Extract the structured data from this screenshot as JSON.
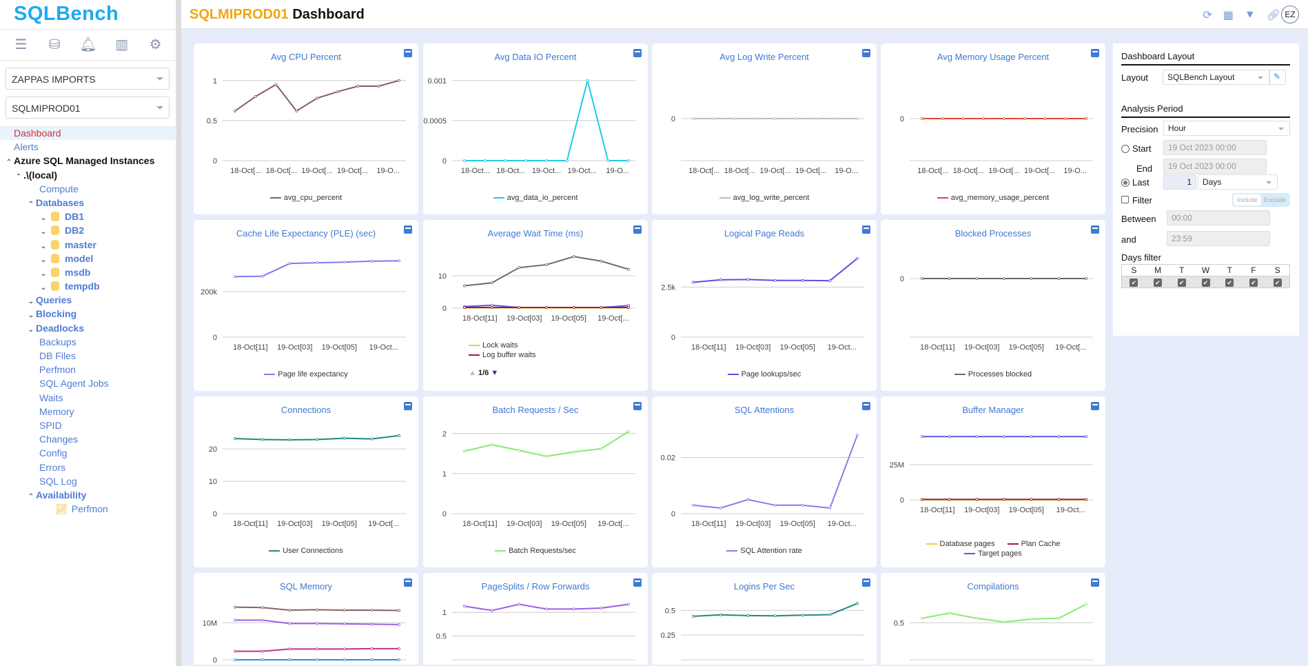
{
  "app": {
    "logo": "SQLBench",
    "server": "SQLMIPROD01",
    "page": "Dashboard",
    "avatar": "EZ"
  },
  "sidebar": {
    "icons": [
      "menu-icon",
      "database-icon",
      "bell-icon",
      "chart-icon",
      "gear-icon"
    ],
    "company": "ZAPPAS IMPORTS",
    "server": "SQLMIPROD01",
    "items": [
      {
        "label": "Dashboard",
        "indent": 0,
        "active": true
      },
      {
        "label": "Alerts",
        "indent": 0
      },
      {
        "label": "Azure SQL Managed Instances",
        "indent": 0,
        "chev": "up",
        "bold": true,
        "dark": true
      },
      {
        "label": ".\\(local)",
        "indent": 1,
        "chev": "up",
        "bold": true,
        "dark": true
      },
      {
        "label": "Compute",
        "indent": 3
      },
      {
        "label": "Databases",
        "indent": 2,
        "chev": "up",
        "bold": true
      },
      {
        "label": "DB1",
        "indent": 3,
        "chev": "down",
        "bold": true,
        "db": true
      },
      {
        "label": "DB2",
        "indent": 3,
        "chev": "down",
        "bold": true,
        "db": true
      },
      {
        "label": "master",
        "indent": 3,
        "chev": "down",
        "bold": true,
        "db": true
      },
      {
        "label": "model",
        "indent": 3,
        "chev": "down",
        "bold": true,
        "db": true
      },
      {
        "label": "msdb",
        "indent": 3,
        "chev": "down",
        "bold": true,
        "db": true
      },
      {
        "label": "tempdb",
        "indent": 3,
        "chev": "down",
        "bold": true,
        "db": true
      },
      {
        "label": "Queries",
        "indent": 2,
        "chev": "down",
        "bold": true
      },
      {
        "label": "Blocking",
        "indent": 2,
        "chev": "down",
        "bold": true
      },
      {
        "label": "Deadlocks",
        "indent": 2,
        "chev": "down",
        "bold": true
      },
      {
        "label": "Backups",
        "indent": 3
      },
      {
        "label": "DB Files",
        "indent": 3
      },
      {
        "label": "Perfmon",
        "indent": 3
      },
      {
        "label": "SQL Agent Jobs",
        "indent": 3
      },
      {
        "label": "Waits",
        "indent": 3
      },
      {
        "label": "Memory",
        "indent": 3
      },
      {
        "label": "SPID",
        "indent": 3
      },
      {
        "label": "Changes",
        "indent": 3
      },
      {
        "label": "Config",
        "indent": 3
      },
      {
        "label": "Errors",
        "indent": 3
      },
      {
        "label": "SQL Log",
        "indent": 3
      },
      {
        "label": "Availability",
        "indent": 2,
        "chev": "up",
        "bold": true
      },
      {
        "label": "Perfmon",
        "indent": 4,
        "chart": true
      }
    ]
  },
  "header_icons": [
    "refresh-icon",
    "table-icon",
    "filter-icon",
    "link-icon"
  ],
  "panel": {
    "layout_title": "Dashboard Layout",
    "layout_label": "Layout",
    "layout_value": "SQLBench Layout",
    "period_title": "Analysis Period",
    "precision_label": "Precision",
    "precision_value": "Hour",
    "start_label": "Start",
    "start_value": "19 Oct 2023 00:00",
    "end_label": "End",
    "end_value": "19 Oct 2023 00:00",
    "last_label": "Last",
    "last_value": "1",
    "last_unit": "Days",
    "period_mode": "last",
    "filter_label": "Filter",
    "filter_checked": false,
    "include": "Include",
    "exclude": "Exclude",
    "between_label": "Between",
    "between_value": "00:00",
    "and_label": "and",
    "and_value": "23:59",
    "days_title": "Days filter",
    "days": [
      "S",
      "M",
      "T",
      "W",
      "T",
      "F",
      "S"
    ],
    "days_checked": [
      true,
      true,
      true,
      true,
      true,
      true,
      true
    ]
  },
  "chart_data": [
    {
      "type": "line",
      "title": "Avg CPU Percent",
      "ylim": [
        0,
        1.05
      ],
      "yticks": [
        0,
        0.5,
        1
      ],
      "ytick_labels": [
        "0",
        "0.5",
        "1"
      ],
      "xlabels": [
        "18-Oct[...",
        "18-Oct[...",
        "19-Oct[...",
        "19-Oct[...",
        "19-O..."
      ],
      "series": [
        {
          "name": "avg_cpu_percent",
          "color": "#8b5a5a",
          "values": [
            0.62,
            0.8,
            0.95,
            0.62,
            0.78,
            0.86,
            0.93,
            0.93,
            1.0
          ]
        }
      ]
    },
    {
      "type": "line",
      "title": "Avg Data IO Percent",
      "ylim": [
        0,
        0.00105
      ],
      "yticks": [
        0,
        0.0005,
        0.001
      ],
      "ytick_labels": [
        "0",
        "0.0005",
        "0.001"
      ],
      "xlabels": [
        "18-Oct...",
        "18-Oct...",
        "19-Oct...",
        "19-Oct...",
        "19-O..."
      ],
      "series": [
        {
          "name": "avg_data_io_percent",
          "color": "#1fcbe8",
          "values": [
            0,
            0,
            0,
            0,
            0,
            0,
            0.001,
            0,
            0
          ]
        }
      ]
    },
    {
      "type": "line",
      "title": "Avg Log Write Percent",
      "ylim": [
        -1,
        1
      ],
      "yticks": [
        0
      ],
      "ytick_labels": [
        "0"
      ],
      "xlabels": [
        "18-Oct[...",
        "18-Oct[...",
        "19-Oct[...",
        "19-Oct[...",
        "19-O..."
      ],
      "series": [
        {
          "name": "avg_log_write_percent",
          "color": "#bdbdbd",
          "values": [
            0,
            0,
            0,
            0,
            0,
            0,
            0,
            0,
            0
          ]
        }
      ]
    },
    {
      "type": "line",
      "title": "Avg Memory Usage Percent",
      "ylim": [
        -1,
        1
      ],
      "yticks": [
        0
      ],
      "ytick_labels": [
        "0"
      ],
      "xlabels": [
        "18-Oct[...",
        "18-Oct[...",
        "19-Oct[...",
        "19-Oct[...",
        "19-O..."
      ],
      "series": [
        {
          "name": "avg_memory_usage_percent",
          "color": "#e8443a",
          "values": [
            0,
            0,
            0,
            0,
            0,
            0,
            0,
            0,
            0
          ]
        }
      ]
    },
    {
      "type": "line",
      "title": "Cache Life Expectancy (PLE) (sec)",
      "ylim": [
        0,
        370000
      ],
      "yticks": [
        0,
        200000
      ],
      "ytick_labels": [
        "0",
        "200k"
      ],
      "xlabels": [
        "18-Oct[11]",
        "19-Oct[03]",
        "19-Oct[05]",
        "19-Oct..."
      ],
      "series": [
        {
          "name": "Page life expectancy",
          "color": "#7b7bef",
          "values": [
            266000,
            268000,
            324000,
            327000,
            330000,
            334000,
            336000
          ]
        }
      ]
    },
    {
      "type": "line",
      "title": "Average Wait Time (ms)",
      "ylim": [
        0,
        17
      ],
      "yticks": [
        0,
        10
      ],
      "ytick_labels": [
        "0",
        "10"
      ],
      "xlabels": [
        "18-Oct[11]",
        "19-Oct[03]",
        "19-Oct[05]",
        "19-Oct[..."
      ],
      "pager": "1/6",
      "series": [
        {
          "color": "#6b6b6b",
          "values": [
            6.9,
            7.8,
            12.5,
            13.4,
            15.9,
            14.5,
            12.0
          ]
        },
        {
          "color": "#5a5ae0",
          "values": [
            0.5,
            0.9,
            0.2,
            0.2,
            0.2,
            0.2,
            0.8
          ]
        },
        {
          "name": "Lock waits",
          "color": "#e8d03a",
          "values": [
            0.1,
            0.1,
            0.1,
            0.1,
            0.1,
            0.1,
            0.1
          ]
        },
        {
          "name": "Log buffer waits",
          "color": "#a01c3a",
          "values": [
            0.2,
            0.2,
            0.2,
            0.2,
            0.2,
            0.2,
            0.2
          ]
        }
      ]
    },
    {
      "type": "line",
      "title": "Logical Page Reads",
      "ylim": [
        0,
        4200
      ],
      "yticks": [
        0,
        2500
      ],
      "ytick_labels": [
        "0",
        "2.5k"
      ],
      "xlabels": [
        "18-Oct[11]",
        "19-Oct[03]",
        "19-Oct[05]",
        "19-Oct..."
      ],
      "series": [
        {
          "name": "Page lookups/sec",
          "color": "#5650e6",
          "values": [
            2740,
            2860,
            2880,
            2830,
            2830,
            2820,
            3930
          ]
        }
      ]
    },
    {
      "type": "line",
      "title": "Blocked Processes",
      "ylim": [
        -2.3,
        1
      ],
      "yticks": [
        0
      ],
      "ytick_labels": [
        "0"
      ],
      "xlabels": [
        "18-Oct[11]",
        "19-Oct[03]",
        "19-Oct[05]",
        "19-Oct[..."
      ],
      "series": [
        {
          "name": "Processes blocked",
          "color": "#666666",
          "values": [
            0,
            0,
            0,
            0,
            0,
            0,
            0
          ]
        }
      ]
    },
    {
      "type": "line",
      "title": "Connections",
      "ylim": [
        0,
        26
      ],
      "yticks": [
        0,
        10,
        20
      ],
      "ytick_labels": [
        "0",
        "10",
        "20"
      ],
      "xlabels": [
        "18-Oct[11]",
        "19-Oct[03]",
        "19-Oct[05]",
        "19-Oct[..."
      ],
      "series": [
        {
          "name": "User Connections",
          "color": "#22877e",
          "values": [
            23.2,
            22.9,
            22.8,
            22.9,
            23.3,
            23.1,
            24.1
          ]
        }
      ]
    },
    {
      "type": "line",
      "title": "Batch Requests / Sec",
      "ylim": [
        0,
        2.1
      ],
      "yticks": [
        0,
        1,
        2
      ],
      "ytick_labels": [
        "0",
        "1",
        "2"
      ],
      "xlabels": [
        "18-Oct[11]",
        "19-Oct[03]",
        "19-Oct[05]",
        "19-Oct[..."
      ],
      "series": [
        {
          "name": "Batch Requests/sec",
          "color": "#86ea6e",
          "values": [
            1.56,
            1.72,
            1.58,
            1.43,
            1.54,
            1.62,
            2.05
          ]
        }
      ]
    },
    {
      "type": "line",
      "title": "SQL Attentions",
      "ylim": [
        0,
        0.03
      ],
      "yticks": [
        0,
        0.02
      ],
      "ytick_labels": [
        "0",
        "0.02"
      ],
      "xlabels": [
        "18-Oct[11]",
        "19-Oct[03]",
        "19-Oct[05]",
        "19-Oct..."
      ],
      "series": [
        {
          "name": "SQL Attention rate",
          "color": "#7f7fee",
          "values": [
            0.003,
            0.002,
            0.005,
            0.003,
            0.003,
            0.002,
            0.028
          ]
        }
      ]
    },
    {
      "type": "line",
      "title": "Buffer Manager",
      "ylim": [
        0,
        50000000
      ],
      "yticks": [
        0,
        25000000
      ],
      "ytick_labels": [
        "0",
        "25M"
      ],
      "xlabels": [
        "18-Oct[11]",
        "19-Oct[03]",
        "19-Oct[05]",
        "19-Oct..."
      ],
      "series": [
        {
          "name": "Database pages",
          "color": "#e8d03a",
          "values": [
            0,
            0,
            0,
            0,
            0,
            0,
            0
          ]
        },
        {
          "name": "Plan Cache",
          "color": "#a01c3a",
          "values": [
            300000,
            300000,
            300000,
            300000,
            300000,
            300000,
            300000
          ]
        },
        {
          "name": "Target pages",
          "color": "#5a5ae0",
          "values": [
            45000000,
            45000000,
            45000000,
            45000000,
            45000000,
            45000000,
            45000000
          ]
        }
      ]
    },
    {
      "type": "line",
      "title": "SQL Memory",
      "ylim": [
        0,
        16000000
      ],
      "yticks": [
        0,
        10000000
      ],
      "ytick_labels": [
        "0",
        "10M"
      ],
      "xlabels": [],
      "series": [
        {
          "color": "#8b6060",
          "values": [
            14200000,
            14100000,
            13400000,
            13500000,
            13400000,
            13400000,
            13300000
          ]
        },
        {
          "color": "#a05ce8",
          "values": [
            10700000,
            10700000,
            9800000,
            9800000,
            9700000,
            9600000,
            9500000
          ]
        },
        {
          "color": "#c0308a",
          "values": [
            2300000,
            2300000,
            2900000,
            2900000,
            2900000,
            3000000,
            3000000
          ]
        },
        {
          "color": "#2a8fd0",
          "values": [
            0,
            0,
            0,
            0,
            0,
            0,
            0
          ]
        }
      ]
    },
    {
      "type": "line",
      "title": "PageSplits / Row Forwards",
      "ylim": [
        0,
        1.25
      ],
      "yticks": [
        0.5,
        1
      ],
      "ytick_labels": [
        "0.5",
        "1"
      ],
      "xlabels": [],
      "series": [
        {
          "color": "#a05ce8",
          "values": [
            1.13,
            1.04,
            1.17,
            1.07,
            1.07,
            1.09,
            1.17
          ]
        }
      ]
    },
    {
      "type": "line",
      "title": "Logins Per Sec",
      "ylim": [
        0,
        0.6
      ],
      "yticks": [
        0.25,
        0.5
      ],
      "ytick_labels": [
        "0.25",
        "0.5"
      ],
      "xlabels": [],
      "series": [
        {
          "color": "#22877e",
          "values": [
            0.44,
            0.455,
            0.447,
            0.445,
            0.452,
            0.457,
            0.57
          ]
        }
      ]
    },
    {
      "type": "line",
      "title": "Compilations",
      "ylim": [
        0,
        0.8
      ],
      "yticks": [
        0.5
      ],
      "ytick_labels": [
        "0.5"
      ],
      "xlabels": [],
      "series": [
        {
          "color": "#86ea6e",
          "values": [
            0.56,
            0.63,
            0.56,
            0.51,
            0.55,
            0.56,
            0.75
          ]
        }
      ]
    }
  ]
}
